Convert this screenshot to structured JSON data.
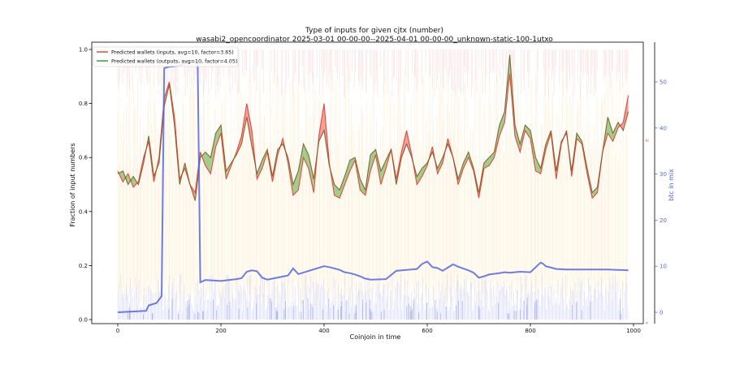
{
  "chart_data": {
    "type": "line",
    "title": "Type of inputs for given cjtx (number)",
    "subtitle": "wasabi2_opencoordinator 2025-03-01 00-00-00--2025-04-01 00-00-00_unknown-static-100-1utxo",
    "xlabel": "Coinjoin in time",
    "ylabel": "Fraction of input numbers",
    "y2label": "btc in mix",
    "y3_tick_labels": [
      "0",
      "10",
      "20"
    ],
    "xlim": [
      -50,
      1030
    ],
    "ylim": [
      -0.02,
      1.0
    ],
    "y2lim": [
      -2.5,
      56.6
    ],
    "xticks": [
      0,
      200,
      400,
      600,
      800,
      1000
    ],
    "yticks": [
      0.0,
      0.2,
      0.4,
      0.6,
      0.8,
      1.0
    ],
    "y2ticks": [
      0,
      10,
      20,
      30,
      40,
      50
    ],
    "grid": false,
    "legend_position": "top-left",
    "colors": {
      "inputs": "#e8483c",
      "outputs": "#3f9a3a",
      "btc": "#5566e0",
      "fill_red": "#f07f74",
      "fill_green": "#7fbf6b"
    },
    "series": [
      {
        "name": "Predicted wallets (inputs, avg=10, factor=3.65)",
        "axis": "left",
        "x": [
          0,
          10,
          20,
          30,
          40,
          50,
          60,
          70,
          80,
          90,
          100,
          110,
          120,
          130,
          140,
          150,
          160,
          170,
          180,
          190,
          200,
          210,
          220,
          230,
          240,
          250,
          260,
          270,
          280,
          290,
          300,
          310,
          320,
          330,
          340,
          350,
          360,
          370,
          380,
          390,
          400,
          410,
          420,
          430,
          440,
          450,
          460,
          470,
          480,
          490,
          500,
          510,
          520,
          530,
          540,
          550,
          560,
          570,
          580,
          590,
          600,
          610,
          620,
          630,
          640,
          650,
          660,
          670,
          680,
          690,
          700,
          710,
          720,
          730,
          740,
          750,
          760,
          770,
          780,
          790,
          800,
          810,
          820,
          830,
          840,
          850,
          860,
          870,
          880,
          890,
          900,
          910,
          920,
          930,
          940,
          950,
          960,
          970,
          980,
          990
        ],
        "values": [
          0.55,
          0.51,
          0.54,
          0.49,
          0.51,
          0.6,
          0.66,
          0.51,
          0.6,
          0.82,
          0.88,
          0.75,
          0.52,
          0.56,
          0.5,
          0.47,
          0.62,
          0.57,
          0.54,
          0.64,
          0.69,
          0.52,
          0.57,
          0.62,
          0.68,
          0.8,
          0.7,
          0.52,
          0.56,
          0.62,
          0.51,
          0.61,
          0.67,
          0.58,
          0.46,
          0.48,
          0.6,
          0.56,
          0.47,
          0.68,
          0.8,
          0.58,
          0.46,
          0.45,
          0.5,
          0.55,
          0.59,
          0.48,
          0.46,
          0.55,
          0.61,
          0.5,
          0.56,
          0.63,
          0.52,
          0.62,
          0.7,
          0.61,
          0.5,
          0.53,
          0.57,
          0.64,
          0.54,
          0.58,
          0.67,
          0.6,
          0.5,
          0.56,
          0.6,
          0.55,
          0.45,
          0.56,
          0.57,
          0.6,
          0.68,
          0.73,
          0.91,
          0.68,
          0.62,
          0.7,
          0.67,
          0.55,
          0.54,
          0.63,
          0.69,
          0.52,
          0.65,
          0.7,
          0.53,
          0.67,
          0.65,
          0.54,
          0.45,
          0.47,
          0.62,
          0.69,
          0.66,
          0.71,
          0.73,
          0.83
        ]
      },
      {
        "name": "Predicted wallets (outputs, avg=10, factor=4.05)",
        "axis": "left",
        "x": [
          0,
          10,
          20,
          30,
          40,
          50,
          60,
          70,
          80,
          90,
          100,
          110,
          120,
          130,
          140,
          150,
          160,
          170,
          180,
          190,
          200,
          210,
          220,
          230,
          240,
          250,
          260,
          270,
          280,
          290,
          300,
          310,
          320,
          330,
          340,
          350,
          360,
          370,
          380,
          390,
          400,
          410,
          420,
          430,
          440,
          450,
          460,
          470,
          480,
          490,
          500,
          510,
          520,
          530,
          540,
          550,
          560,
          570,
          580,
          590,
          600,
          610,
          620,
          630,
          640,
          650,
          660,
          670,
          680,
          690,
          700,
          710,
          720,
          730,
          740,
          750,
          760,
          770,
          780,
          790,
          800,
          810,
          820,
          830,
          840,
          850,
          860,
          870,
          880,
          890,
          900,
          910,
          920,
          930,
          940,
          950,
          960,
          970,
          980,
          990
        ],
        "values": [
          0.54,
          0.55,
          0.5,
          0.53,
          0.5,
          0.58,
          0.68,
          0.53,
          0.58,
          0.79,
          0.87,
          0.72,
          0.5,
          0.58,
          0.5,
          0.44,
          0.6,
          0.62,
          0.6,
          0.69,
          0.72,
          0.55,
          0.58,
          0.61,
          0.65,
          0.75,
          0.64,
          0.54,
          0.59,
          0.63,
          0.53,
          0.63,
          0.65,
          0.6,
          0.5,
          0.55,
          0.65,
          0.61,
          0.52,
          0.66,
          0.7,
          0.57,
          0.5,
          0.48,
          0.53,
          0.59,
          0.6,
          0.52,
          0.48,
          0.61,
          0.63,
          0.55,
          0.59,
          0.63,
          0.5,
          0.6,
          0.65,
          0.6,
          0.53,
          0.56,
          0.58,
          0.62,
          0.56,
          0.6,
          0.65,
          0.6,
          0.52,
          0.58,
          0.62,
          0.56,
          0.47,
          0.58,
          0.6,
          0.62,
          0.72,
          0.77,
          0.98,
          0.72,
          0.65,
          0.72,
          0.7,
          0.6,
          0.56,
          0.65,
          0.7,
          0.55,
          0.66,
          0.69,
          0.55,
          0.69,
          0.66,
          0.56,
          0.47,
          0.49,
          0.62,
          0.75,
          0.69,
          0.73,
          0.7,
          0.77
        ]
      },
      {
        "name": "btc in mix",
        "axis": "right",
        "x": [
          0,
          55,
          60,
          75,
          85,
          90,
          100,
          110,
          120,
          130,
          150,
          155,
          160,
          170,
          200,
          230,
          240,
          250,
          260,
          270,
          280,
          290,
          300,
          330,
          340,
          350,
          400,
          410,
          430,
          440,
          450,
          460,
          470,
          480,
          490,
          520,
          540,
          560,
          580,
          590,
          600,
          610,
          620,
          630,
          640,
          650,
          660,
          680,
          690,
          700,
          710,
          720,
          740,
          750,
          760,
          780,
          800,
          820,
          825,
          830,
          840,
          850,
          870,
          950,
          990
        ],
        "values": [
          0,
          0.3,
          1.5,
          2,
          3.5,
          53,
          53.3,
          53.4,
          53.6,
          54,
          54.5,
          54,
          6.5,
          7,
          6.8,
          7.2,
          7.4,
          8.8,
          9.1,
          8.9,
          7.5,
          7.1,
          7.3,
          8,
          9.5,
          8.3,
          10,
          9.8,
          9.2,
          8.7,
          8.5,
          8.2,
          7.8,
          7.3,
          7.1,
          7.2,
          9,
          9.2,
          9.4,
          10.5,
          11,
          9.8,
          9.6,
          9,
          9.7,
          10.4,
          9.9,
          9.1,
          8.6,
          7.5,
          7.8,
          8.2,
          8.5,
          8.7,
          8.6,
          8.8,
          8.7,
          10.8,
          10.5,
          10,
          9.7,
          9.4,
          9.3,
          9.3,
          9.1
        ]
      }
    ]
  }
}
